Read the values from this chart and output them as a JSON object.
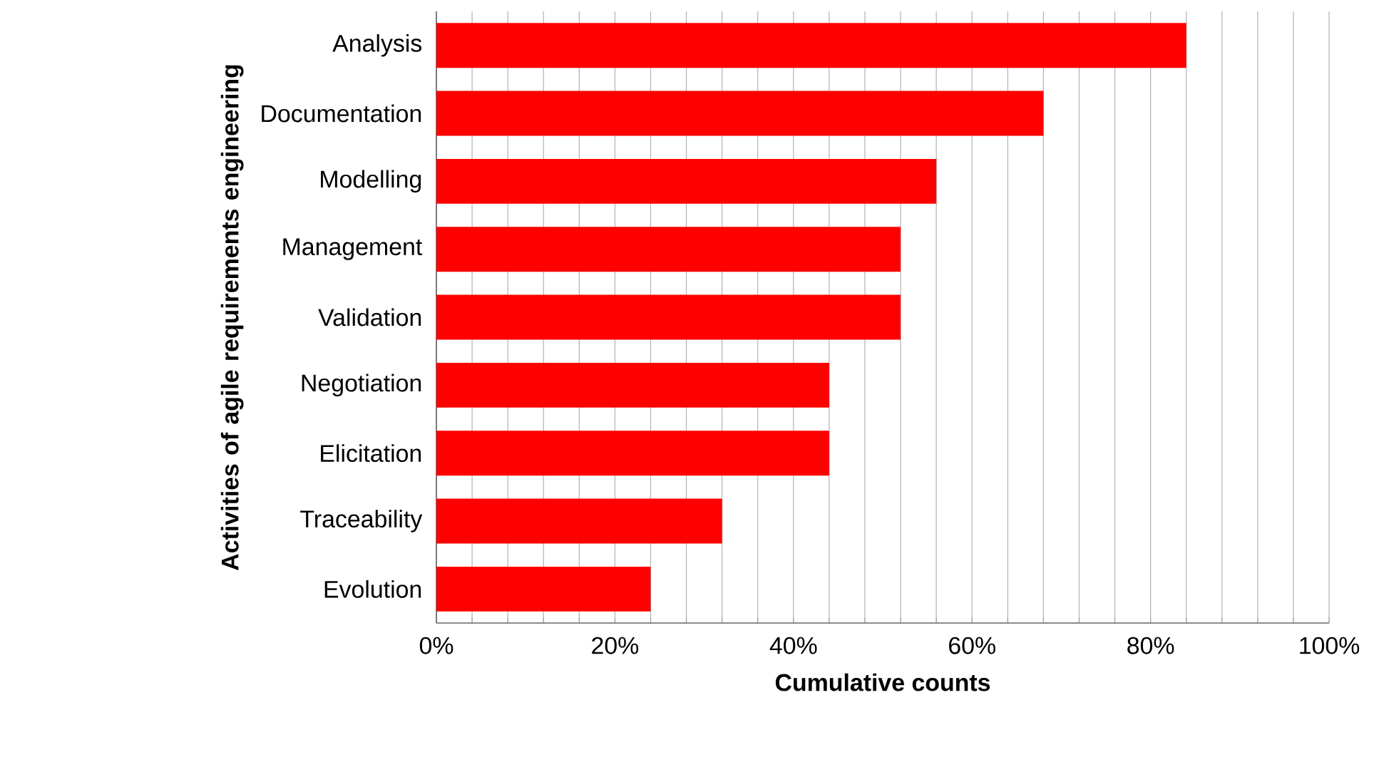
{
  "chart_data": {
    "type": "bar",
    "orientation": "horizontal",
    "xlabel": "Cumulative counts",
    "ylabel": "Activities of agile requirements engineering",
    "categories": [
      "Analysis",
      "Documentation",
      "Modelling",
      "Management",
      "Validation",
      "Negotiation",
      "Elicitation",
      "Traceability",
      "Evolution"
    ],
    "values": [
      84,
      68,
      56,
      52,
      52,
      44,
      44,
      32,
      24
    ],
    "color": "#ff0000",
    "xlim": [
      0,
      100
    ],
    "xticks": [
      {
        "value": 0,
        "label": "0%"
      },
      {
        "value": 4,
        "label": null
      },
      {
        "value": 8,
        "label": null
      },
      {
        "value": 12,
        "label": null
      },
      {
        "value": 16,
        "label": null
      },
      {
        "value": 20,
        "label": "20%"
      },
      {
        "value": 24,
        "label": null
      },
      {
        "value": 28,
        "label": null
      },
      {
        "value": 32,
        "label": null
      },
      {
        "value": 36,
        "label": null
      },
      {
        "value": 40,
        "label": "40%"
      },
      {
        "value": 44,
        "label": null
      },
      {
        "value": 48,
        "label": null
      },
      {
        "value": 52,
        "label": null
      },
      {
        "value": 56,
        "label": null
      },
      {
        "value": 60,
        "label": "60%"
      },
      {
        "value": 64,
        "label": null
      },
      {
        "value": 68,
        "label": null
      },
      {
        "value": 72,
        "label": null
      },
      {
        "value": 76,
        "label": null
      },
      {
        "value": 80,
        "label": "80%"
      },
      {
        "value": 84,
        "label": null
      },
      {
        "value": 88,
        "label": null
      },
      {
        "value": 92,
        "label": null
      },
      {
        "value": 96,
        "label": null
      },
      {
        "value": 100,
        "label": "100%"
      }
    ],
    "grid": "x"
  }
}
